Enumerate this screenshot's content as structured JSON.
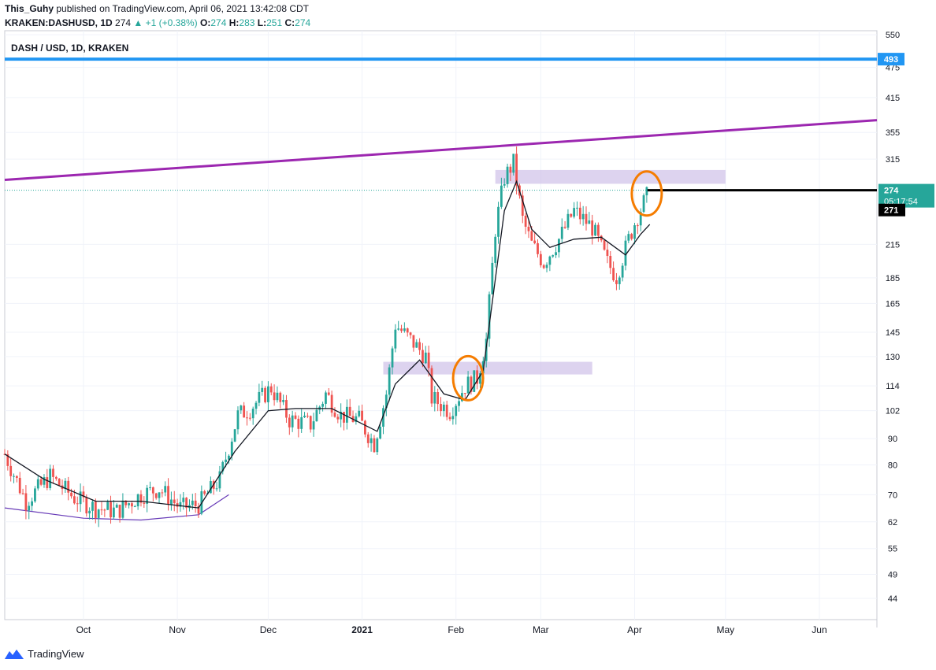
{
  "header": {
    "author": "This_Guhy",
    "published_text": "published on TradingView.com, April 06, 2021 13:42:08 CDT",
    "symbol": "KRAKEN:DASHUSD, 1D",
    "price": "274",
    "change": "+1 (+0.38%)",
    "ohlc": {
      "o": "274",
      "h": "283",
      "l": "251",
      "c": "274"
    }
  },
  "chart_title": "DASH / USD, 1D, KRAKEN",
  "footer": {
    "brand": "TradingView"
  },
  "colors": {
    "up": "#26a69a",
    "down": "#ef5350",
    "purple_line": "#9c27b0",
    "blue_line": "#2196f3",
    "zone": "#d1c4e9",
    "circle": "#f57c00",
    "ma": "#131722"
  },
  "chart_data": {
    "type": "candlestick",
    "title": "DASH / USD, 1D, KRAKEN",
    "y_scale": "log",
    "ylim": [
      40,
      560
    ],
    "y_ticks": [
      550,
      475,
      415,
      355,
      315,
      215,
      185,
      165,
      145,
      130,
      114,
      102,
      90,
      80,
      70,
      62,
      55,
      49,
      44
    ],
    "x_range": [
      "2020-09-05",
      "2021-06-20"
    ],
    "x_ticks": [
      {
        "label": "Oct",
        "date": "2020-10-01"
      },
      {
        "label": "Nov",
        "date": "2020-11-01"
      },
      {
        "label": "Dec",
        "date": "2020-12-01"
      },
      {
        "label": "2021",
        "date": "2021-01-01"
      },
      {
        "label": "Feb",
        "date": "2021-02-01"
      },
      {
        "label": "Mar",
        "date": "2021-03-01"
      },
      {
        "label": "Apr",
        "date": "2021-04-01"
      },
      {
        "label": "May",
        "date": "2021-05-01"
      },
      {
        "label": "Jun",
        "date": "2021-06-01"
      }
    ],
    "price_series": {
      "name": "DASHUSD close (approx.)",
      "points": [
        [
          "2020-09-05",
          84
        ],
        [
          "2020-09-12",
          68
        ],
        [
          "2020-09-20",
          76
        ],
        [
          "2020-09-28",
          69
        ],
        [
          "2020-10-05",
          66
        ],
        [
          "2020-10-12",
          65
        ],
        [
          "2020-10-20",
          70
        ],
        [
          "2020-10-26",
          72
        ],
        [
          "2020-11-02",
          66
        ],
        [
          "2020-11-08",
          67
        ],
        [
          "2020-11-15",
          75
        ],
        [
          "2020-11-21",
          100
        ],
        [
          "2020-11-25",
          103
        ],
        [
          "2020-12-02",
          113
        ],
        [
          "2020-12-08",
          98
        ],
        [
          "2020-12-15",
          96
        ],
        [
          "2020-12-20",
          110
        ],
        [
          "2020-12-25",
          100
        ],
        [
          "2020-12-31",
          98
        ],
        [
          "2021-01-05",
          88
        ],
        [
          "2021-01-09",
          110
        ],
        [
          "2021-01-12",
          150
        ],
        [
          "2021-01-18",
          138
        ],
        [
          "2021-01-22",
          130
        ],
        [
          "2021-01-24",
          108
        ],
        [
          "2021-01-30",
          102
        ],
        [
          "2021-02-04",
          114
        ],
        [
          "2021-02-08",
          118
        ],
        [
          "2021-02-11",
          140
        ],
        [
          "2021-02-14",
          230
        ],
        [
          "2021-02-17",
          290
        ],
        [
          "2021-02-20",
          310
        ],
        [
          "2021-02-23",
          240
        ],
        [
          "2021-02-26",
          215
        ],
        [
          "2021-03-02",
          198
        ],
        [
          "2021-03-07",
          220
        ],
        [
          "2021-03-12",
          250
        ],
        [
          "2021-03-18",
          232
        ],
        [
          "2021-03-23",
          198
        ],
        [
          "2021-03-26",
          186
        ],
        [
          "2021-03-30",
          220
        ],
        [
          "2021-04-02",
          245
        ],
        [
          "2021-04-06",
          274
        ]
      ]
    },
    "moving_average": {
      "points": [
        [
          "2020-09-05",
          84
        ],
        [
          "2020-09-18",
          75
        ],
        [
          "2020-10-05",
          68
        ],
        [
          "2020-10-20",
          68
        ],
        [
          "2020-11-08",
          66
        ],
        [
          "2020-11-20",
          85
        ],
        [
          "2020-12-01",
          102
        ],
        [
          "2020-12-10",
          103
        ],
        [
          "2020-12-22",
          103
        ],
        [
          "2021-01-06",
          93
        ],
        [
          "2021-01-12",
          115
        ],
        [
          "2021-01-20",
          128
        ],
        [
          "2021-01-28",
          110
        ],
        [
          "2021-02-04",
          107
        ],
        [
          "2021-02-10",
          122
        ],
        [
          "2021-02-17",
          250
        ],
        [
          "2021-02-21",
          285
        ],
        [
          "2021-02-26",
          230
        ],
        [
          "2021-03-04",
          212
        ],
        [
          "2021-03-12",
          220
        ],
        [
          "2021-03-21",
          222
        ],
        [
          "2021-03-29",
          205
        ],
        [
          "2021-04-03",
          225
        ],
        [
          "2021-04-06",
          235
        ]
      ]
    },
    "long_curve": {
      "points": [
        [
          "2020-09-05",
          66
        ],
        [
          "2020-10-01",
          63
        ],
        [
          "2020-10-20",
          62.5
        ],
        [
          "2020-11-08",
          64
        ],
        [
          "2020-11-18",
          70
        ]
      ]
    },
    "horizontal_lines": [
      {
        "price": 493,
        "label": "493"
      }
    ],
    "trend_line": {
      "start": [
        "2020-09-05",
        287
      ],
      "end": [
        "2021-06-20",
        375
      ]
    },
    "zones": [
      {
        "start": "2021-02-14",
        "end": "2021-05-01",
        "top": 300,
        "bottom": 282
      },
      {
        "start": "2021-01-08",
        "end": "2021-03-18",
        "top": 127,
        "bottom": 120
      }
    ],
    "ellipses": [
      {
        "date": "2021-02-05",
        "price": 118
      },
      {
        "date": "2021-04-05",
        "price": 270
      }
    ],
    "price_labels": [
      {
        "text": "274",
        "sub": "05:17:54",
        "price": 274
      },
      {
        "text": "271",
        "price": 271
      }
    ]
  }
}
